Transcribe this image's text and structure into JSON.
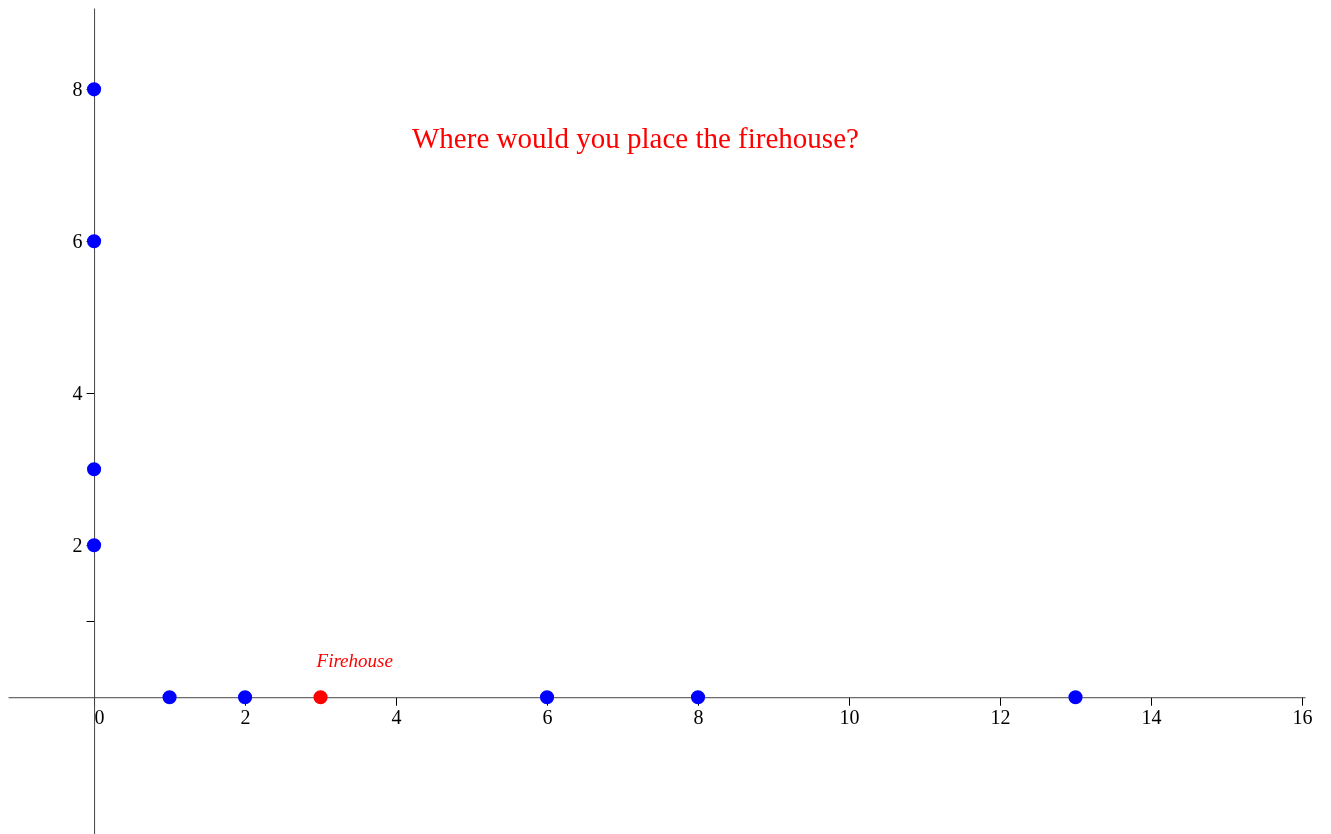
{
  "chart_data": {
    "type": "scatter",
    "title": "Where would you place the firehouse?",
    "series": [
      {
        "color": "#0000ff",
        "x": [
          1,
          2,
          6,
          8,
          13,
          0,
          0,
          0,
          0
        ],
        "values": [
          0,
          0,
          0,
          0,
          0,
          2,
          3,
          6,
          8
        ]
      },
      {
        "name": "Firehouse",
        "color": "#ff0000",
        "x": [
          3
        ],
        "values": [
          0
        ]
      }
    ],
    "xlim": [
      -1.14,
      16.04
    ],
    "ylim": [
      -1.8,
      9.07
    ],
    "xticks": [
      0,
      2,
      4,
      6,
      8,
      10,
      12,
      14,
      16
    ],
    "yticks": [
      {
        "value": 1,
        "label": null
      },
      2,
      4,
      6,
      8
    ],
    "grid": false,
    "marker": "circle"
  }
}
